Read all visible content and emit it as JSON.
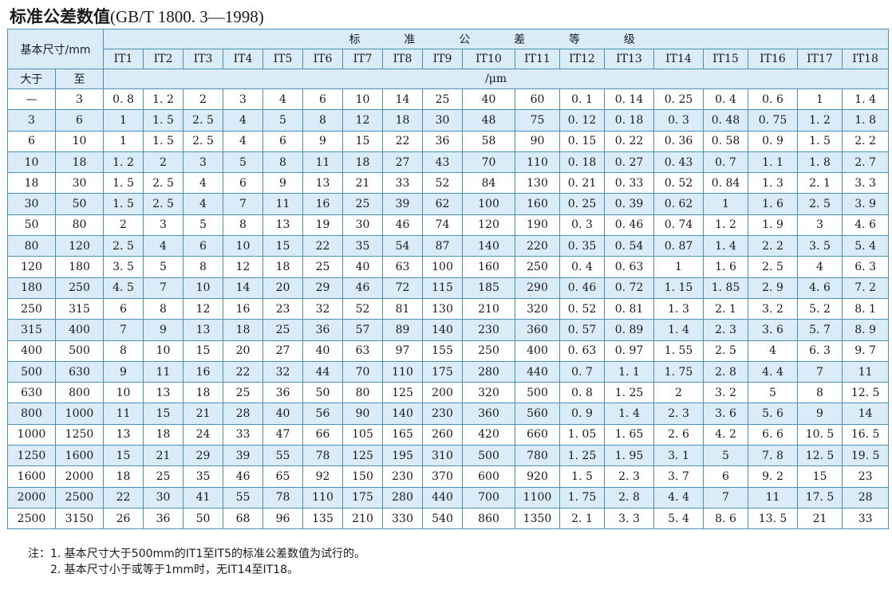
{
  "title": {
    "cn": "标准公差数值",
    "std": "(GB/T 1800. 3—1998)"
  },
  "header": {
    "basic_size": "基本尺寸/mm",
    "grade_chars": [
      "标",
      "准",
      "公",
      "差",
      "等",
      "级"
    ],
    "grades": [
      "IT1",
      "IT2",
      "IT3",
      "IT4",
      "IT5",
      "IT6",
      "IT7",
      "IT8",
      "IT9",
      "IT10",
      "IT11",
      "IT12",
      "IT13",
      "IT14",
      "IT15",
      "IT16",
      "IT17",
      "IT18"
    ],
    "over": "大于",
    "to": "至",
    "unit": "/μm"
  },
  "rows": [
    {
      "over": "—",
      "to": "3",
      "v": [
        "0. 8",
        "1. 2",
        "2",
        "3",
        "4",
        "6",
        "10",
        "14",
        "25",
        "40",
        "60",
        "0. 1",
        "0. 14",
        "0. 25",
        "0. 4",
        "0. 6",
        "1",
        "1. 4"
      ]
    },
    {
      "over": "3",
      "to": "6",
      "v": [
        "1",
        "1. 5",
        "2. 5",
        "4",
        "5",
        "8",
        "12",
        "18",
        "30",
        "48",
        "75",
        "0. 12",
        "0. 18",
        "0. 3",
        "0. 48",
        "0. 75",
        "1. 2",
        "1. 8"
      ]
    },
    {
      "over": "6",
      "to": "10",
      "v": [
        "1",
        "1. 5",
        "2. 5",
        "4",
        "6",
        "9",
        "15",
        "22",
        "36",
        "58",
        "90",
        "0. 15",
        "0. 22",
        "0. 36",
        "0. 58",
        "0. 9",
        "1. 5",
        "2. 2"
      ]
    },
    {
      "over": "10",
      "to": "18",
      "v": [
        "1. 2",
        "2",
        "3",
        "5",
        "8",
        "11",
        "18",
        "27",
        "43",
        "70",
        "110",
        "0. 18",
        "0. 27",
        "0. 43",
        "0. 7",
        "1. 1",
        "1. 8",
        "2. 7"
      ]
    },
    {
      "over": "18",
      "to": "30",
      "v": [
        "1. 5",
        "2. 5",
        "4",
        "6",
        "9",
        "13",
        "21",
        "33",
        "52",
        "84",
        "130",
        "0. 21",
        "0. 33",
        "0. 52",
        "0. 84",
        "1. 3",
        "2. 1",
        "3. 3"
      ]
    },
    {
      "over": "30",
      "to": "50",
      "v": [
        "1. 5",
        "2. 5",
        "4",
        "7",
        "11",
        "16",
        "25",
        "39",
        "62",
        "100",
        "160",
        "0. 25",
        "0. 39",
        "0. 62",
        "1",
        "1. 6",
        "2. 5",
        "3. 9"
      ]
    },
    {
      "over": "50",
      "to": "80",
      "v": [
        "2",
        "3",
        "5",
        "8",
        "13",
        "19",
        "30",
        "46",
        "74",
        "120",
        "190",
        "0. 3",
        "0. 46",
        "0. 74",
        "1. 2",
        "1. 9",
        "3",
        "4. 6"
      ]
    },
    {
      "over": "80",
      "to": "120",
      "v": [
        "2. 5",
        "4",
        "6",
        "10",
        "15",
        "22",
        "35",
        "54",
        "87",
        "140",
        "220",
        "0. 35",
        "0. 54",
        "0. 87",
        "1. 4",
        "2. 2",
        "3. 5",
        "5. 4"
      ]
    },
    {
      "over": "120",
      "to": "180",
      "v": [
        "3. 5",
        "5",
        "8",
        "12",
        "18",
        "25",
        "40",
        "63",
        "100",
        "160",
        "250",
        "0. 4",
        "0. 63",
        "1",
        "1. 6",
        "2. 5",
        "4",
        "6. 3"
      ]
    },
    {
      "over": "180",
      "to": "250",
      "v": [
        "4. 5",
        "7",
        "10",
        "14",
        "20",
        "29",
        "46",
        "72",
        "115",
        "185",
        "290",
        "0. 46",
        "0. 72",
        "1. 15",
        "1. 85",
        "2. 9",
        "4. 6",
        "7. 2"
      ]
    },
    {
      "over": "250",
      "to": "315",
      "v": [
        "6",
        "8",
        "12",
        "16",
        "23",
        "32",
        "52",
        "81",
        "130",
        "210",
        "320",
        "0. 52",
        "0. 81",
        "1. 3",
        "2. 1",
        "3. 2",
        "5. 2",
        "8. 1"
      ]
    },
    {
      "over": "315",
      "to": "400",
      "v": [
        "7",
        "9",
        "13",
        "18",
        "25",
        "36",
        "57",
        "89",
        "140",
        "230",
        "360",
        "0. 57",
        "0. 89",
        "1. 4",
        "2. 3",
        "3. 6",
        "5. 7",
        "8. 9"
      ]
    },
    {
      "over": "400",
      "to": "500",
      "v": [
        "8",
        "10",
        "15",
        "20",
        "27",
        "40",
        "63",
        "97",
        "155",
        "250",
        "400",
        "0. 63",
        "0. 97",
        "1. 55",
        "2. 5",
        "4",
        "6. 3",
        "9. 7"
      ]
    },
    {
      "over": "500",
      "to": "630",
      "v": [
        "9",
        "11",
        "16",
        "22",
        "32",
        "44",
        "70",
        "110",
        "175",
        "280",
        "440",
        "0. 7",
        "1. 1",
        "1. 75",
        "2. 8",
        "4. 4",
        "7",
        "11"
      ]
    },
    {
      "over": "630",
      "to": "800",
      "v": [
        "10",
        "13",
        "18",
        "25",
        "36",
        "50",
        "80",
        "125",
        "200",
        "320",
        "500",
        "0. 8",
        "1. 25",
        "2",
        "3. 2",
        "5",
        "8",
        "12. 5"
      ]
    },
    {
      "over": "800",
      "to": "1000",
      "v": [
        "11",
        "15",
        "21",
        "28",
        "40",
        "56",
        "90",
        "140",
        "230",
        "360",
        "560",
        "0. 9",
        "1. 4",
        "2. 3",
        "3. 6",
        "5. 6",
        "9",
        "14"
      ]
    },
    {
      "over": "1000",
      "to": "1250",
      "v": [
        "13",
        "18",
        "24",
        "33",
        "47",
        "66",
        "105",
        "165",
        "260",
        "420",
        "660",
        "1. 05",
        "1. 65",
        "2. 6",
        "4. 2",
        "6. 6",
        "10. 5",
        "16. 5"
      ]
    },
    {
      "over": "1250",
      "to": "1600",
      "v": [
        "15",
        "21",
        "29",
        "39",
        "55",
        "78",
        "125",
        "195",
        "310",
        "500",
        "780",
        "1. 25",
        "1. 95",
        "3. 1",
        "5",
        "7. 8",
        "12. 5",
        "19. 5"
      ]
    },
    {
      "over": "1600",
      "to": "2000",
      "v": [
        "18",
        "25",
        "35",
        "46",
        "65",
        "92",
        "150",
        "230",
        "370",
        "600",
        "920",
        "1. 5",
        "2. 3",
        "3. 7",
        "6",
        "9. 2",
        "15",
        "23"
      ]
    },
    {
      "over": "2000",
      "to": "2500",
      "v": [
        "22",
        "30",
        "41",
        "55",
        "78",
        "110",
        "175",
        "280",
        "440",
        "700",
        "1100",
        "1. 75",
        "2. 8",
        "4. 4",
        "7",
        "11",
        "17. 5",
        "28"
      ]
    },
    {
      "over": "2500",
      "to": "3150",
      "v": [
        "26",
        "36",
        "50",
        "68",
        "96",
        "135",
        "210",
        "330",
        "540",
        "860",
        "1350",
        "2. 1",
        "3. 3",
        "5. 4",
        "8. 6",
        "13. 5",
        "21",
        "33"
      ]
    }
  ],
  "notes": [
    "注：1. 基本尺寸大于500mm的IT1至IT5的标准公差数值为试行的。",
    "2. 基本尺寸小于或等于1mm时，无IT14至IT18。"
  ]
}
